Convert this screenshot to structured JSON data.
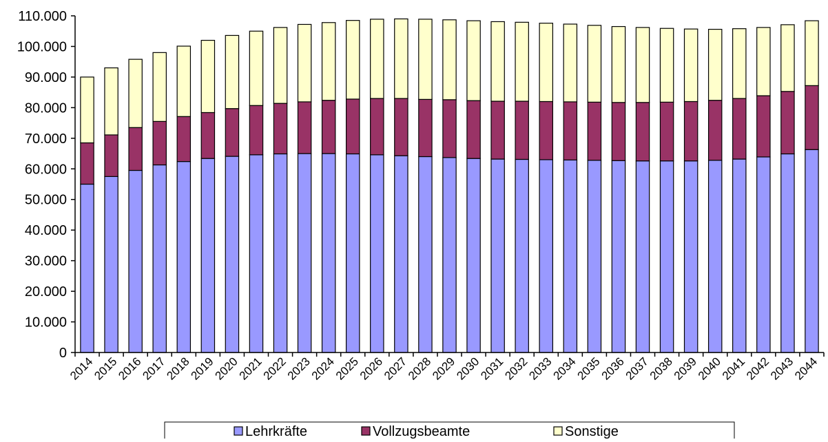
{
  "chart_data": {
    "type": "bar",
    "stacked": true,
    "categories": [
      "2014",
      "2015",
      "2016",
      "2017",
      "2018",
      "2019",
      "2020",
      "2021",
      "2022",
      "2023",
      "2024",
      "2025",
      "2026",
      "2027",
      "2028",
      "2029",
      "2030",
      "2031",
      "2032",
      "2033",
      "2034",
      "2035",
      "2036",
      "2037",
      "2038",
      "2039",
      "2040",
      "2041",
      "2042",
      "2043",
      "2044"
    ],
    "ylim": [
      0,
      110000
    ],
    "yticks": [
      0,
      10000,
      20000,
      30000,
      40000,
      50000,
      60000,
      70000,
      80000,
      90000,
      100000,
      110000
    ],
    "ytick_labels": [
      "0",
      "10.000",
      "20.000",
      "30.000",
      "40.000",
      "50.000",
      "60.000",
      "70.000",
      "80.000",
      "90.000",
      "100.000",
      "110.000"
    ],
    "grid": false,
    "legend_position": "bottom",
    "series": [
      {
        "name": "Lehrkräfte",
        "color": "#9999ff",
        "values": [
          55000,
          57500,
          59500,
          61300,
          62400,
          63400,
          64100,
          64600,
          64900,
          65000,
          65000,
          64900,
          64600,
          64300,
          64000,
          63700,
          63400,
          63200,
          63100,
          63000,
          62900,
          62800,
          62700,
          62600,
          62600,
          62600,
          62800,
          63200,
          63900,
          64900,
          66300
        ]
      },
      {
        "name": "Vollzugsbeamte",
        "color": "#993366",
        "values": [
          13500,
          13600,
          14000,
          14200,
          14700,
          15000,
          15600,
          16100,
          16500,
          16900,
          17400,
          17900,
          18400,
          18700,
          18700,
          18900,
          18900,
          18900,
          19000,
          19000,
          19000,
          19000,
          19000,
          19100,
          19200,
          19400,
          19600,
          19800,
          20000,
          20400,
          20900
        ]
      },
      {
        "name": "Sonstige",
        "color": "#ffffcc",
        "values": [
          21500,
          21900,
          22300,
          22500,
          23000,
          23600,
          23900,
          24300,
          24800,
          25300,
          25400,
          25700,
          25900,
          26000,
          26200,
          26100,
          26100,
          26000,
          25800,
          25600,
          25400,
          25100,
          24800,
          24500,
          24100,
          23700,
          23200,
          22800,
          22300,
          21800,
          21200
        ]
      }
    ]
  }
}
